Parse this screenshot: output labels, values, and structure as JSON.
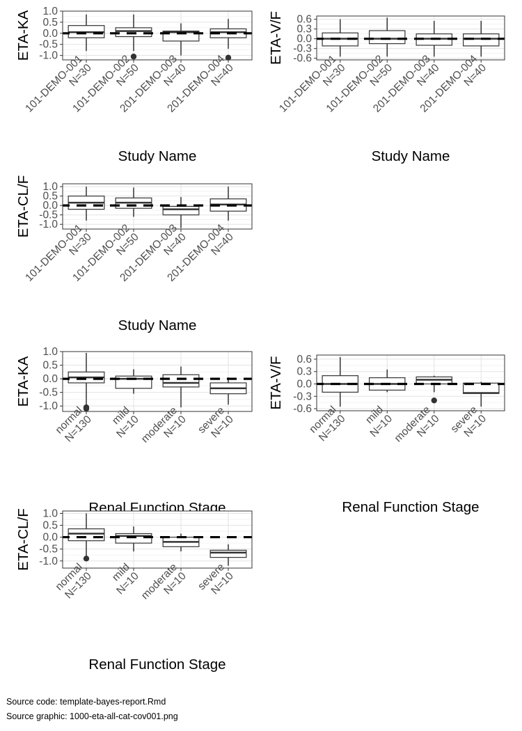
{
  "source": {
    "code_label": "Source code:",
    "code_file": "template-bayes-report.Rmd",
    "graphic_label": "Source graphic:",
    "graphic_file": "1000-eta-all-cat-cov001.png"
  },
  "chart_data": [
    {
      "type": "boxplot",
      "ylabel": "ETA-KA",
      "xlabel": "Study Name",
      "categories": [
        "101-DEMO-001\nN=30",
        "101-DEMO-002\nN=50",
        "201-DEMO-003\nN=40",
        "201-DEMO-004\nN=40"
      ],
      "ylim": [
        -1.2,
        1.0
      ],
      "yticks": [
        "1.0",
        "0.5",
        "0.0",
        "-0.5",
        "-1.0"
      ],
      "ytick_values": [
        1.0,
        0.5,
        0.0,
        -0.5,
        -1.0
      ],
      "reference_line": 0,
      "boxes": [
        {
          "whisker_low": -0.8,
          "q1": -0.2,
          "median": 0.05,
          "q3": 0.35,
          "whisker_high": 0.85,
          "outliers": []
        },
        {
          "whisker_low": -0.8,
          "q1": -0.15,
          "median": 0.1,
          "q3": 0.25,
          "whisker_high": 0.85,
          "outliers": [
            -1.05
          ]
        },
        {
          "whisker_low": -1.0,
          "q1": -0.35,
          "median": 0.05,
          "q3": 0.1,
          "whisker_high": 0.45,
          "outliers": []
        },
        {
          "whisker_low": -0.7,
          "q1": -0.2,
          "median": 0.05,
          "q3": 0.2,
          "whisker_high": 0.65,
          "outliers": [
            -1.1
          ]
        }
      ],
      "grid": true
    },
    {
      "type": "boxplot",
      "ylabel": "ETA-V/F",
      "xlabel": "Study Name",
      "categories": [
        "101-DEMO-001\nN=30",
        "101-DEMO-002\nN=50",
        "201-DEMO-003\nN=40",
        "201-DEMO-004\nN=40"
      ],
      "ylim": [
        -0.65,
        0.7
      ],
      "yticks": [
        "0.6",
        "0.3",
        "0.0",
        "-0.3",
        "-0.6"
      ],
      "ytick_values": [
        0.6,
        0.3,
        0.0,
        -0.3,
        -0.6
      ],
      "reference_line": 0,
      "boxes": [
        {
          "whisker_low": -0.55,
          "q1": -0.22,
          "median": 0.0,
          "q3": 0.18,
          "whisker_high": 0.6,
          "outliers": []
        },
        {
          "whisker_low": -0.55,
          "q1": -0.15,
          "median": 0.0,
          "q3": 0.25,
          "whisker_high": 0.65,
          "outliers": []
        },
        {
          "whisker_low": -0.55,
          "q1": -0.2,
          "median": 0.0,
          "q3": 0.15,
          "whisker_high": 0.55,
          "outliers": []
        },
        {
          "whisker_low": -0.55,
          "q1": -0.22,
          "median": 0.0,
          "q3": 0.15,
          "whisker_high": 0.55,
          "outliers": []
        }
      ],
      "grid": true
    },
    {
      "type": "boxplot",
      "ylabel": "ETA-CL/F",
      "xlabel": "Study Name",
      "categories": [
        "101-DEMO-001\nN=30",
        "101-DEMO-002\nN=50",
        "201-DEMO-003\nN=40",
        "201-DEMO-004\nN=40"
      ],
      "ylim": [
        -1.25,
        1.15
      ],
      "yticks": [
        "1.0",
        "0.5",
        "0.0",
        "-0.5",
        "-1.0"
      ],
      "ytick_values": [
        1.0,
        0.5,
        0.0,
        -0.5,
        -1.0
      ],
      "reference_line": 0,
      "boxes": [
        {
          "whisker_low": -0.8,
          "q1": -0.2,
          "median": 0.15,
          "q3": 0.5,
          "whisker_high": 1.0,
          "outliers": []
        },
        {
          "whisker_low": -0.6,
          "q1": -0.15,
          "median": 0.15,
          "q3": 0.4,
          "whisker_high": 0.95,
          "outliers": []
        },
        {
          "whisker_low": -1.2,
          "q1": -0.5,
          "median": -0.2,
          "q3": -0.05,
          "whisker_high": 0.45,
          "outliers": []
        },
        {
          "whisker_low": -0.8,
          "q1": -0.3,
          "median": 0.05,
          "q3": 0.35,
          "whisker_high": 1.0,
          "outliers": []
        }
      ],
      "grid": true
    },
    {
      "type": "boxplot",
      "ylabel": "ETA-KA",
      "xlabel": "Renal Function Stage",
      "categories": [
        "normal\nN=130",
        "mild\nN=10",
        "moderate\nN=10",
        "severe\nN=10"
      ],
      "ylim": [
        -1.2,
        1.0
      ],
      "yticks": [
        "1.0",
        "0.5",
        "0.0",
        "-0.5",
        "-1.0"
      ],
      "ytick_values": [
        1.0,
        0.5,
        0.0,
        -0.5,
        -1.0
      ],
      "reference_line": 0,
      "boxes": [
        {
          "whisker_low": -0.95,
          "q1": -0.15,
          "median": 0.05,
          "q3": 0.25,
          "whisker_high": 0.95,
          "outliers": [
            -1.05,
            -1.1
          ]
        },
        {
          "whisker_low": -0.55,
          "q1": -0.35,
          "median": 0.0,
          "q3": 0.1,
          "whisker_high": 0.35,
          "outliers": []
        },
        {
          "whisker_low": -1.05,
          "q1": -0.3,
          "median": -0.15,
          "q3": 0.15,
          "whisker_high": 0.45,
          "outliers": []
        },
        {
          "whisker_low": -0.95,
          "q1": -0.55,
          "median": -0.35,
          "q3": -0.15,
          "whisker_high": 0.05,
          "outliers": []
        }
      ],
      "grid": true
    },
    {
      "type": "boxplot",
      "ylabel": "ETA-V/F",
      "xlabel": "Renal Function Stage",
      "categories": [
        "normal\nN=130",
        "mild\nN=10",
        "moderate\nN=10",
        "severe\nN=10"
      ],
      "ylim": [
        -0.65,
        0.7
      ],
      "yticks": [
        "0.6",
        "0.3",
        "0.0",
        "-0.3",
        "-0.6"
      ],
      "ytick_values": [
        0.6,
        0.3,
        0.0,
        -0.3,
        -0.6
      ],
      "reference_line": 0,
      "boxes": [
        {
          "whisker_low": -0.55,
          "q1": -0.2,
          "median": 0.0,
          "q3": 0.2,
          "whisker_high": 0.65,
          "outliers": []
        },
        {
          "whisker_low": -0.2,
          "q1": -0.15,
          "median": 0.0,
          "q3": 0.15,
          "whisker_high": 0.35,
          "outliers": []
        },
        {
          "whisker_low": -0.2,
          "q1": 0.0,
          "median": 0.1,
          "q3": 0.17,
          "whisker_high": 0.2,
          "outliers": [
            -0.4
          ]
        },
        {
          "whisker_low": -0.55,
          "q1": -0.23,
          "median": -0.22,
          "q3": 0.02,
          "whisker_high": 0.05,
          "outliers": []
        }
      ],
      "grid": true
    },
    {
      "type": "boxplot",
      "ylabel": "ETA-CL/F",
      "xlabel": "Renal Function Stage",
      "categories": [
        "normal\nN=130",
        "mild\nN=10",
        "moderate\nN=10",
        "severe\nN=10"
      ],
      "ylim": [
        -1.3,
        1.1
      ],
      "yticks": [
        "1.0",
        "0.5",
        "0.0",
        "-0.5",
        "-1.0"
      ],
      "ytick_values": [
        1.0,
        0.5,
        0.0,
        -0.5,
        -1.0
      ],
      "reference_line": 0,
      "boxes": [
        {
          "whisker_low": -0.8,
          "q1": -0.15,
          "median": 0.15,
          "q3": 0.35,
          "whisker_high": 1.0,
          "outliers": [
            -0.9
          ]
        },
        {
          "whisker_low": -0.6,
          "q1": -0.25,
          "median": 0.05,
          "q3": 0.15,
          "whisker_high": 0.45,
          "outliers": []
        },
        {
          "whisker_low": -0.6,
          "q1": -0.4,
          "median": -0.2,
          "q3": 0.0,
          "whisker_high": 0.15,
          "outliers": []
        },
        {
          "whisker_low": -1.2,
          "q1": -0.85,
          "median": -0.65,
          "q3": -0.55,
          "whisker_high": -0.3,
          "outliers": []
        }
      ],
      "grid": true
    }
  ]
}
